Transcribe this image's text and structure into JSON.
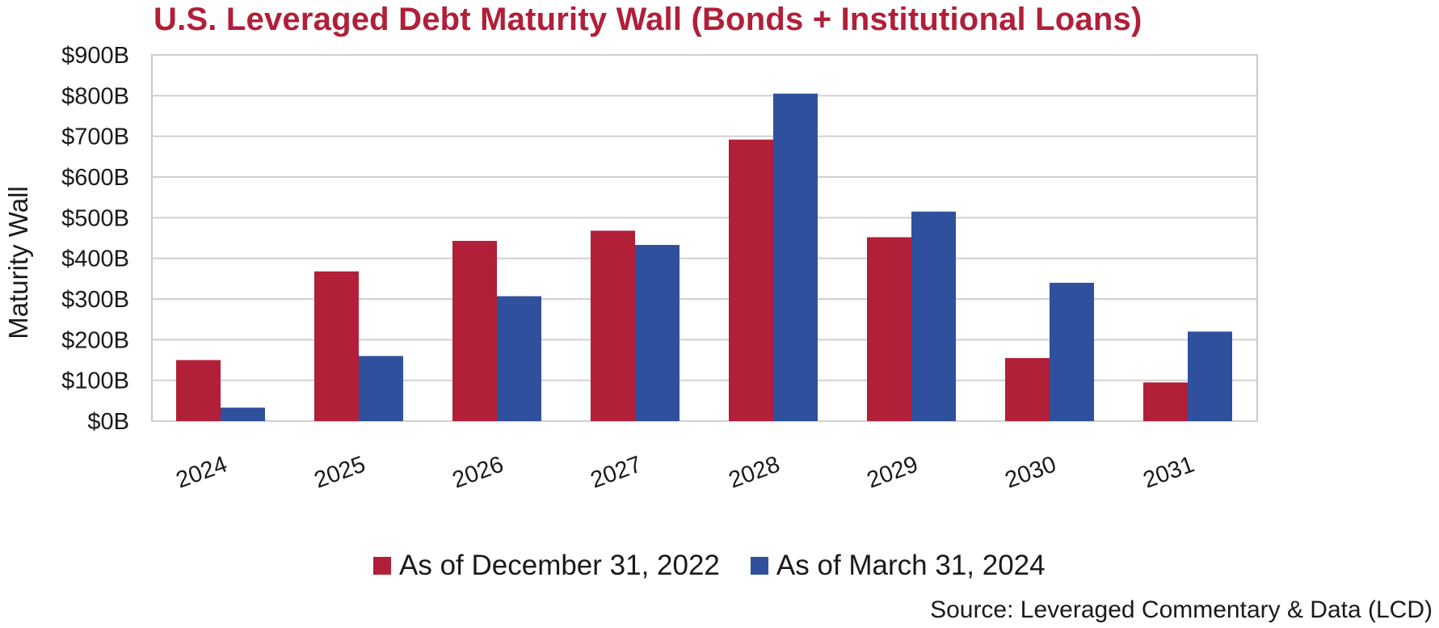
{
  "chart_data": {
    "type": "bar",
    "title": "U.S. Leveraged Debt Maturity Wall (Bonds + Institutional Loans)",
    "ylabel": "Maturity Wall",
    "xlabel": "",
    "categories": [
      "2024",
      "2025",
      "2026",
      "2027",
      "2028",
      "2029",
      "2030",
      "2031"
    ],
    "series": [
      {
        "name": "As of December 31, 2022",
        "color": "#b11f38",
        "values": [
          150,
          368,
          443,
          468,
          692,
          452,
          155,
          95
        ]
      },
      {
        "name": "As of March 31, 2024",
        "color": "#2f509c",
        "values": [
          33,
          160,
          307,
          433,
          805,
          515,
          340,
          220
        ]
      }
    ],
    "ylim": [
      0,
      900
    ],
    "yticks": [
      0,
      100,
      200,
      300,
      400,
      500,
      600,
      700,
      800,
      900
    ],
    "ytick_labels": [
      "$0B",
      "$100B",
      "$200B",
      "$300B",
      "$400B",
      "$500B",
      "$600B",
      "$700B",
      "$800B",
      "$900B"
    ],
    "grid": true,
    "legend_position": "bottom-center",
    "title_color": "#b11f38",
    "source": "Source: Leveraged Commentary & Data (LCD)"
  }
}
